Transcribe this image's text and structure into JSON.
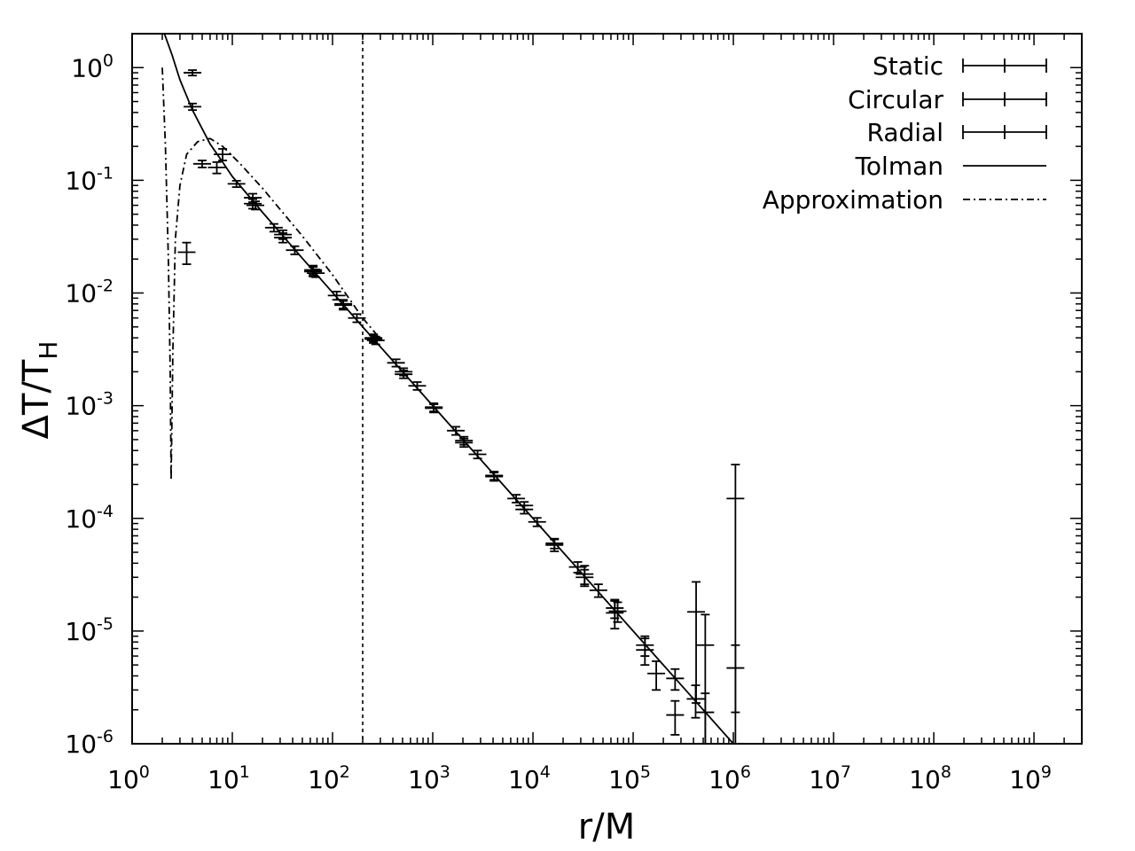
{
  "chart_data": {
    "type": "scatter",
    "xlabel": "r/M",
    "ylabel_main": "ΔT/T",
    "ylabel_sub": "H",
    "xscale": "log",
    "yscale": "log",
    "xlim": [
      1,
      3000000000.0
    ],
    "ylim": [
      1e-06,
      2.0
    ],
    "grid": false,
    "legend_position": "top-right",
    "x_ticks": [
      {
        "base": "10",
        "exp": "0",
        "value": 1
      },
      {
        "base": "10",
        "exp": "1",
        "value": 10
      },
      {
        "base": "10",
        "exp": "2",
        "value": 100
      },
      {
        "base": "10",
        "exp": "3",
        "value": 1000
      },
      {
        "base": "10",
        "exp": "4",
        "value": 10000
      },
      {
        "base": "10",
        "exp": "5",
        "value": 100000
      },
      {
        "base": "10",
        "exp": "6",
        "value": 1000000
      },
      {
        "base": "10",
        "exp": "7",
        "value": 10000000
      },
      {
        "base": "10",
        "exp": "8",
        "value": 100000000
      },
      {
        "base": "10",
        "exp": "9",
        "value": 1000000000
      }
    ],
    "y_ticks": [
      {
        "base": "10",
        "exp": "0",
        "value": 1
      },
      {
        "base": "10",
        "exp": "-1",
        "value": 0.1
      },
      {
        "base": "10",
        "exp": "-2",
        "value": 0.01
      },
      {
        "base": "10",
        "exp": "-3",
        "value": 0.001
      },
      {
        "base": "10",
        "exp": "-4",
        "value": 0.0001
      },
      {
        "base": "10",
        "exp": "-5",
        "value": 1e-05
      },
      {
        "base": "10",
        "exp": "-6",
        "value": 1e-06
      }
    ],
    "vertical_marker_x": 200,
    "series": [
      {
        "name": "Static",
        "style": "errorbars",
        "points": [
          {
            "x": 4,
            "y": 0.9,
            "err": 0.05
          },
          {
            "x": 4,
            "y": 0.45,
            "err": 0.03
          },
          {
            "x": 8,
            "y": 0.17,
            "err": 0.02
          },
          {
            "x": 16,
            "y": 0.07,
            "err": 0.006
          },
          {
            "x": 32,
            "y": 0.033,
            "err": 0.003
          },
          {
            "x": 64,
            "y": 0.016,
            "err": 0.0015
          },
          {
            "x": 128,
            "y": 0.008,
            "err": 0.0007
          },
          {
            "x": 256,
            "y": 0.004,
            "err": 0.0003
          },
          {
            "x": 512,
            "y": 0.002,
            "err": 0.00015
          },
          {
            "x": 1024,
            "y": 0.00095,
            "err": 8e-05
          },
          {
            "x": 2048,
            "y": 0.00049,
            "err": 4e-05
          },
          {
            "x": 4096,
            "y": 0.00024,
            "err": 2e-05
          },
          {
            "x": 8192,
            "y": 0.00012,
            "err": 1e-05
          },
          {
            "x": 16384,
            "y": 6e-05,
            "err": 6e-06
          },
          {
            "x": 32768,
            "y": 3e-05,
            "err": 5e-06
          },
          {
            "x": 65536,
            "y": 1.6e-05,
            "err": 3e-06
          },
          {
            "x": 131072,
            "y": 7.5e-06,
            "err": 1.5e-06
          },
          {
            "x": 262144,
            "y": 1.8e-06,
            "err": 6e-07
          },
          {
            "x": 524288,
            "y": 7.5e-06,
            "err": 6.5e-06
          },
          {
            "x": 1048576,
            "y": 0.00015,
            "err": 0.00015
          }
        ]
      },
      {
        "name": "Circular",
        "style": "errorbars",
        "points": [
          {
            "x": 3.5,
            "y": 0.023,
            "err": 0.005
          },
          {
            "x": 7,
            "y": 0.13,
            "err": 0.015
          },
          {
            "x": 16,
            "y": 0.062,
            "err": 0.006
          },
          {
            "x": 32,
            "y": 0.031,
            "err": 0.003
          },
          {
            "x": 64,
            "y": 0.0155,
            "err": 0.0015
          },
          {
            "x": 128,
            "y": 0.0078,
            "err": 0.0007
          },
          {
            "x": 256,
            "y": 0.0039,
            "err": 0.0003
          },
          {
            "x": 512,
            "y": 0.0019,
            "err": 0.00015
          },
          {
            "x": 1024,
            "y": 0.00097,
            "err": 8e-05
          },
          {
            "x": 2048,
            "y": 0.00047,
            "err": 4e-05
          },
          {
            "x": 4096,
            "y": 0.000235,
            "err": 2e-05
          },
          {
            "x": 8192,
            "y": 0.00013,
            "err": 1e-05
          },
          {
            "x": 16384,
            "y": 5.8e-05,
            "err": 7e-06
          },
          {
            "x": 32768,
            "y": 3.2e-05,
            "err": 6e-06
          },
          {
            "x": 65536,
            "y": 1.45e-05,
            "err": 4e-06
          },
          {
            "x": 131072,
            "y": 6.8e-06,
            "err": 1.8e-06
          },
          {
            "x": 262144,
            "y": 3.8e-06,
            "err": 8e-07
          },
          {
            "x": 425000,
            "y": 1.48e-05,
            "err": 1.25e-05
          },
          {
            "x": 524288,
            "y": 1.9e-06,
            "err": 9e-07
          },
          {
            "x": 1048576,
            "y": 4.7e-06,
            "err": 2.8e-06
          }
        ]
      },
      {
        "name": "Radial",
        "style": "errorbars",
        "points": [
          {
            "x": 5,
            "y": 0.14,
            "err": 0.01
          },
          {
            "x": 11,
            "y": 0.093,
            "err": 0.006
          },
          {
            "x": 17,
            "y": 0.06,
            "err": 0.005
          },
          {
            "x": 26,
            "y": 0.038,
            "err": 0.003
          },
          {
            "x": 42,
            "y": 0.024,
            "err": 0.002
          },
          {
            "x": 68,
            "y": 0.015,
            "err": 0.0012
          },
          {
            "x": 110,
            "y": 0.0095,
            "err": 0.0008
          },
          {
            "x": 175,
            "y": 0.006,
            "err": 0.0005
          },
          {
            "x": 270,
            "y": 0.0038,
            "err": 0.0003
          },
          {
            "x": 430,
            "y": 0.0024,
            "err": 0.00018
          },
          {
            "x": 700,
            "y": 0.0015,
            "err": 0.00012
          },
          {
            "x": 1700,
            "y": 0.0006,
            "err": 5e-05
          },
          {
            "x": 2800,
            "y": 0.00037,
            "err": 3e-05
          },
          {
            "x": 6800,
            "y": 0.00015,
            "err": 1.2e-05
          },
          {
            "x": 11000,
            "y": 9.3e-05,
            "err": 8e-06
          },
          {
            "x": 28000,
            "y": 3.7e-05,
            "err": 4e-06
          },
          {
            "x": 45000,
            "y": 2.3e-05,
            "err": 3e-06
          },
          {
            "x": 70000,
            "y": 1.5e-05,
            "err": 3e-06
          },
          {
            "x": 170000,
            "y": 4.2e-06,
            "err": 1.2e-06
          },
          {
            "x": 420000,
            "y": 2.5e-06,
            "err": 8e-07
          }
        ]
      },
      {
        "name": "Tolman",
        "style": "solid",
        "points": [
          {
            "x": 2.1,
            "y": 2.0
          },
          {
            "x": 2.5,
            "y": 1.3
          },
          {
            "x": 3,
            "y": 0.78
          },
          {
            "x": 4,
            "y": 0.42
          },
          {
            "x": 6,
            "y": 0.21
          },
          {
            "x": 8,
            "y": 0.145
          },
          {
            "x": 10,
            "y": 0.108
          },
          {
            "x": 20,
            "y": 0.052
          },
          {
            "x": 50,
            "y": 0.0203
          },
          {
            "x": 100,
            "y": 0.0101
          },
          {
            "x": 200,
            "y": 0.005
          },
          {
            "x": 1000,
            "y": 0.001
          },
          {
            "x": 10000,
            "y": 0.0001
          },
          {
            "x": 100000,
            "y": 1e-05
          },
          {
            "x": 1000000,
            "y": 1e-06
          }
        ]
      },
      {
        "name": "Approximation",
        "style": "dash-dot",
        "points": [
          {
            "x": 2.0,
            "y": 1.0
          },
          {
            "x": 2.15,
            "y": 0.2
          },
          {
            "x": 2.3,
            "y": 0.02
          },
          {
            "x": 2.4,
            "y": 0.002
          },
          {
            "x": 2.45,
            "y": 0.00022
          },
          {
            "x": 2.55,
            "y": 0.003
          },
          {
            "x": 2.7,
            "y": 0.03
          },
          {
            "x": 3,
            "y": 0.09
          },
          {
            "x": 3.5,
            "y": 0.17
          },
          {
            "x": 4.5,
            "y": 0.22
          },
          {
            "x": 6,
            "y": 0.235
          },
          {
            "x": 8,
            "y": 0.2
          },
          {
            "x": 12,
            "y": 0.14
          },
          {
            "x": 20,
            "y": 0.085
          },
          {
            "x": 50,
            "y": 0.032
          },
          {
            "x": 100,
            "y": 0.0145
          },
          {
            "x": 200,
            "y": 0.006
          },
          {
            "x": 300,
            "y": 0.0039
          }
        ]
      }
    ]
  }
}
